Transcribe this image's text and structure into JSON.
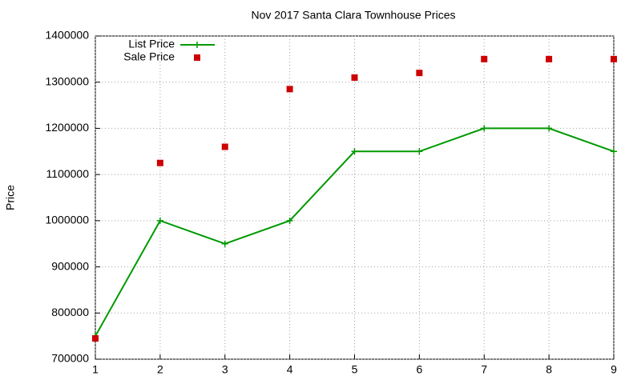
{
  "chart_data": {
    "type": "line",
    "title": "Nov 2017 Santa Clara Townhouse Prices",
    "y_label": "Price",
    "x": [
      1,
      2,
      3,
      4,
      5,
      6,
      7,
      8,
      9
    ],
    "series": [
      {
        "name": "List Price",
        "color": "#009900",
        "style": "linespoints",
        "values": [
          750000,
          1000000,
          950000,
          1000000,
          1150000,
          1150000,
          1200000,
          1200000,
          1150000
        ]
      },
      {
        "name": "Sale Price",
        "color": "#cc0000",
        "style": "points",
        "values": [
          745000,
          1125000,
          1160000,
          1285000,
          1310000,
          1320000,
          1350000,
          1350000,
          1350000
        ]
      }
    ],
    "xlim": [
      1,
      9
    ],
    "xticks": [
      1,
      2,
      3,
      4,
      5,
      6,
      7,
      8,
      9
    ],
    "ylim": [
      700000,
      1400000
    ],
    "yticks": [
      700000,
      800000,
      900000,
      1000000,
      1100000,
      1200000,
      1300000,
      1400000
    ],
    "grid": true,
    "legend": "top left"
  }
}
